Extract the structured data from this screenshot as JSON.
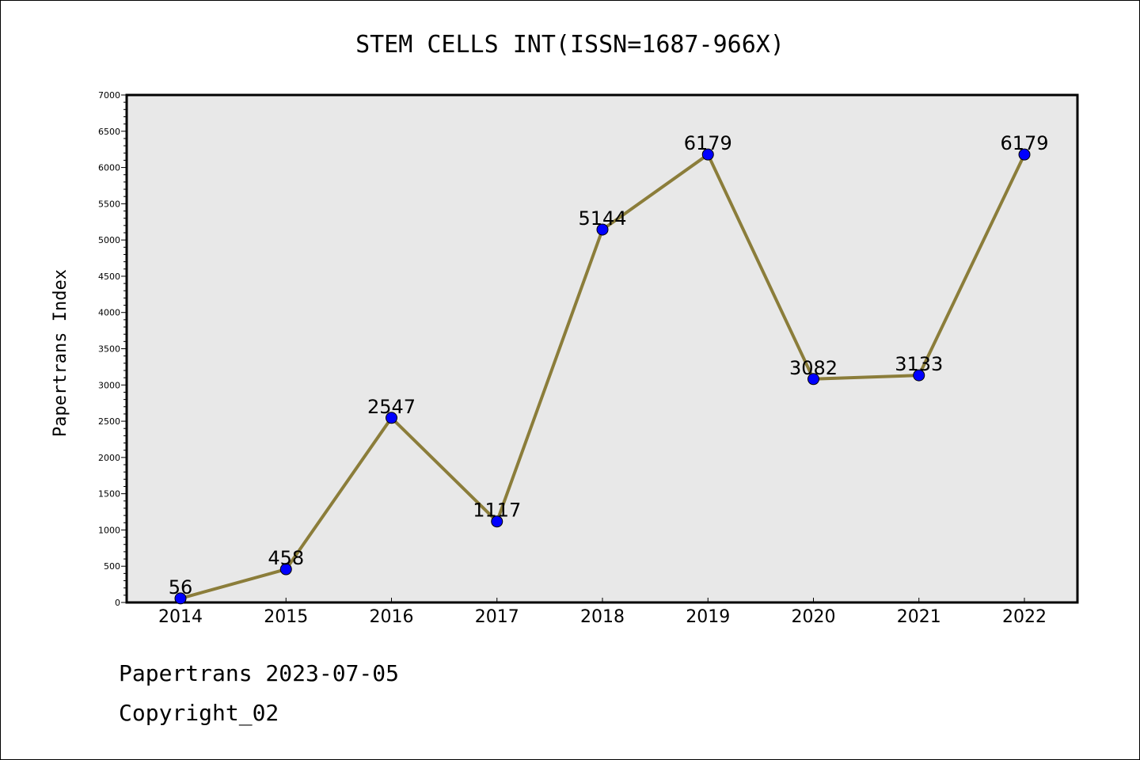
{
  "colors": {
    "plot_background": "#e8e8e8",
    "line": "#8b7d3a",
    "marker": "#0000ff"
  },
  "chart_data": {
    "type": "line",
    "title": "STEM CELLS INT(ISSN=1687-966X)",
    "xlabel": "",
    "ylabel": "Papertrans Index",
    "categories": [
      "2014",
      "2015",
      "2016",
      "2017",
      "2018",
      "2019",
      "2020",
      "2021",
      "2022"
    ],
    "values": [
      56,
      458,
      2547,
      1117,
      5144,
      6179,
      3082,
      3133,
      6179
    ],
    "data_labels": [
      "56",
      "458",
      "2547",
      "1117",
      "5144",
      "6179",
      "3082",
      "3133",
      "6179"
    ],
    "ylim": [
      0,
      7000
    ],
    "yticks": [
      0,
      500,
      1000,
      1500,
      2000,
      2500,
      3000,
      3500,
      4000,
      4500,
      5000,
      5500,
      6000,
      6500,
      7000
    ],
    "grid": false,
    "legend": "none"
  },
  "footer": {
    "line1": "Papertrans 2023-07-05",
    "line2": "Copyright_02"
  }
}
